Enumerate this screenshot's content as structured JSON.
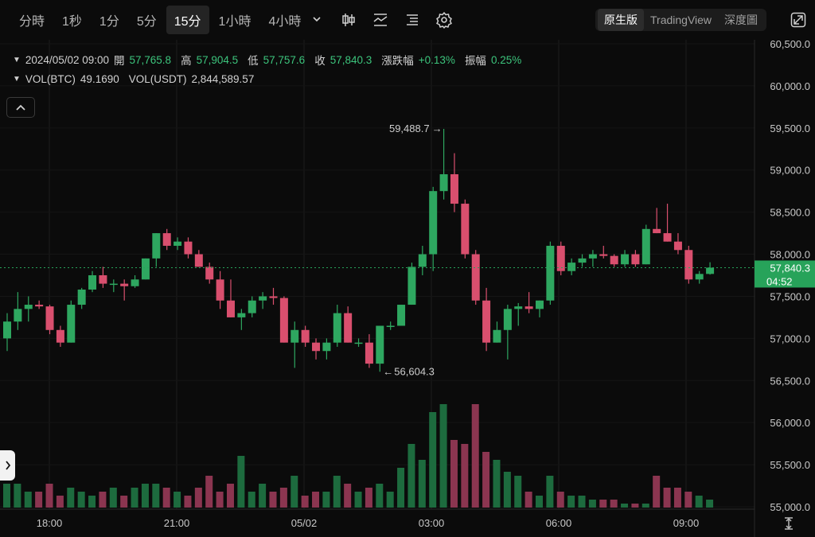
{
  "toolbar": {
    "intervals": [
      "分時",
      "1秒",
      "1分",
      "5分",
      "15分",
      "1小時",
      "4小時"
    ],
    "active_interval": "15分",
    "dropdown_icon": "chevron-down-icon",
    "tool_icons": [
      "candlestick-type-icon",
      "indicator-icon",
      "settings-list-icon",
      "gear-icon"
    ],
    "views": [
      "原生版",
      "TradingView",
      "深度圖"
    ],
    "active_view": "原生版",
    "expand_icon": "expand-icon"
  },
  "ohlc": {
    "datetime": "2024/05/02 09:00",
    "open_label": "開",
    "open": "57,765.8",
    "high_label": "高",
    "high": "57,904.5",
    "low_label": "低",
    "low": "57,757.6",
    "close_label": "收",
    "close": "57,840.3",
    "change_label": "漲跌幅",
    "change": "+0.13%",
    "amp_label": "振幅",
    "amp": "0.25%"
  },
  "volume": {
    "btc_label": "VOL(BTC)",
    "btc": "49.1690",
    "usdt_label": "VOL(USDT)",
    "usdt": "2,844,589.57"
  },
  "colors": {
    "up": "#2ea760",
    "down": "#d94f6e",
    "vol_up": "#1d6b3e",
    "vol_down": "#8b3550",
    "price_badge": "#27a35a"
  },
  "price_axis": [
    "60,500.0",
    "60,000.0",
    "59,500.0",
    "59,000.0",
    "58,500.0",
    "58,000.0",
    "57,500.0",
    "57,000.0",
    "56,500.0",
    "56,000.0",
    "55,500.0",
    "55,000.0"
  ],
  "time_axis": [
    "18:00",
    "21:00",
    "05/02",
    "03:00",
    "06:00",
    "09:00"
  ],
  "current_price": "57,840.3",
  "countdown": "04:52",
  "annotations": {
    "high": "59,488.7",
    "low": "56,604.3"
  },
  "chart_data": {
    "type": "candlestick",
    "y_axis_range": [
      55000,
      60500
    ],
    "candles": [
      {
        "o": 57000,
        "h": 57300,
        "l": 56850,
        "c": 57200
      },
      {
        "o": 57200,
        "h": 57550,
        "l": 57100,
        "c": 57350
      },
      {
        "o": 57350,
        "h": 57500,
        "l": 57200,
        "c": 57400
      },
      {
        "o": 57400,
        "h": 57450,
        "l": 57350,
        "c": 57380
      },
      {
        "o": 57380,
        "h": 57400,
        "l": 57050,
        "c": 57100
      },
      {
        "o": 57100,
        "h": 57150,
        "l": 56900,
        "c": 56950
      },
      {
        "o": 56950,
        "h": 57450,
        "l": 56950,
        "c": 57400
      },
      {
        "o": 57400,
        "h": 57600,
        "l": 57350,
        "c": 57580
      },
      {
        "o": 57580,
        "h": 57800,
        "l": 57550,
        "c": 57750
      },
      {
        "o": 57750,
        "h": 57850,
        "l": 57600,
        "c": 57650
      },
      {
        "o": 57650,
        "h": 57700,
        "l": 57550,
        "c": 57650
      },
      {
        "o": 57650,
        "h": 57700,
        "l": 57450,
        "c": 57620
      },
      {
        "o": 57620,
        "h": 57750,
        "l": 57600,
        "c": 57700
      },
      {
        "o": 57700,
        "h": 57950,
        "l": 57700,
        "c": 57950
      },
      {
        "o": 57950,
        "h": 58250,
        "l": 57850,
        "c": 58250
      },
      {
        "o": 58250,
        "h": 58300,
        "l": 58050,
        "c": 58100
      },
      {
        "o": 58100,
        "h": 58200,
        "l": 58050,
        "c": 58150
      },
      {
        "o": 58150,
        "h": 58200,
        "l": 57950,
        "c": 58000
      },
      {
        "o": 58000,
        "h": 58050,
        "l": 57850,
        "c": 57850
      },
      {
        "o": 57850,
        "h": 57900,
        "l": 57650,
        "c": 57700
      },
      {
        "o": 57700,
        "h": 57800,
        "l": 57350,
        "c": 57450
      },
      {
        "o": 57450,
        "h": 57700,
        "l": 57250,
        "c": 57250
      },
      {
        "o": 57250,
        "h": 57350,
        "l": 57100,
        "c": 57300
      },
      {
        "o": 57300,
        "h": 57500,
        "l": 57250,
        "c": 57450
      },
      {
        "o": 57450,
        "h": 57550,
        "l": 57350,
        "c": 57500
      },
      {
        "o": 57500,
        "h": 57600,
        "l": 57400,
        "c": 57480
      },
      {
        "o": 57480,
        "h": 57500,
        "l": 56950,
        "c": 56950
      },
      {
        "o": 56950,
        "h": 57200,
        "l": 56650,
        "c": 57100
      },
      {
        "o": 57100,
        "h": 57150,
        "l": 56900,
        "c": 56950
      },
      {
        "o": 56950,
        "h": 57000,
        "l": 56750,
        "c": 56850
      },
      {
        "o": 56850,
        "h": 57000,
        "l": 56750,
        "c": 56950
      },
      {
        "o": 56950,
        "h": 57400,
        "l": 56900,
        "c": 57300
      },
      {
        "o": 57300,
        "h": 57380,
        "l": 56950,
        "c": 56950
      },
      {
        "o": 56950,
        "h": 57000,
        "l": 56900,
        "c": 56950
      },
      {
        "o": 56950,
        "h": 57050,
        "l": 56650,
        "c": 56700
      },
      {
        "o": 56700,
        "h": 57150,
        "l": 56604,
        "c": 57150
      },
      {
        "o": 57150,
        "h": 57200,
        "l": 57100,
        "c": 57150
      },
      {
        "o": 57150,
        "h": 57400,
        "l": 57150,
        "c": 57400
      },
      {
        "o": 57400,
        "h": 57900,
        "l": 57400,
        "c": 57850
      },
      {
        "o": 57850,
        "h": 58100,
        "l": 57750,
        "c": 58000
      },
      {
        "o": 58000,
        "h": 58800,
        "l": 57800,
        "c": 58750
      },
      {
        "o": 58750,
        "h": 59488.7,
        "l": 58650,
        "c": 58950
      },
      {
        "o": 58950,
        "h": 59200,
        "l": 58500,
        "c": 58600
      },
      {
        "o": 58600,
        "h": 58650,
        "l": 57950,
        "c": 58000
      },
      {
        "o": 58000,
        "h": 58050,
        "l": 57400,
        "c": 57450
      },
      {
        "o": 57450,
        "h": 57600,
        "l": 56850,
        "c": 56950
      },
      {
        "o": 56950,
        "h": 57200,
        "l": 56950,
        "c": 57100
      },
      {
        "o": 57100,
        "h": 57400,
        "l": 56750,
        "c": 57350
      },
      {
        "o": 57350,
        "h": 57420,
        "l": 57150,
        "c": 57380
      },
      {
        "o": 57380,
        "h": 57550,
        "l": 57300,
        "c": 57350
      },
      {
        "o": 57350,
        "h": 57450,
        "l": 57250,
        "c": 57450
      },
      {
        "o": 57450,
        "h": 58150,
        "l": 57400,
        "c": 58100
      },
      {
        "o": 58100,
        "h": 58150,
        "l": 57750,
        "c": 57800
      },
      {
        "o": 57800,
        "h": 57950,
        "l": 57750,
        "c": 57900
      },
      {
        "o": 57900,
        "h": 58000,
        "l": 57850,
        "c": 57950
      },
      {
        "o": 57950,
        "h": 58050,
        "l": 57850,
        "c": 58000
      },
      {
        "o": 58000,
        "h": 58100,
        "l": 57950,
        "c": 57980
      },
      {
        "o": 57980,
        "h": 58000,
        "l": 57850,
        "c": 57880
      },
      {
        "o": 57880,
        "h": 58050,
        "l": 57850,
        "c": 58000
      },
      {
        "o": 58000,
        "h": 58050,
        "l": 57850,
        "c": 57880
      },
      {
        "o": 57880,
        "h": 58350,
        "l": 57880,
        "c": 58300
      },
      {
        "o": 58300,
        "h": 58550,
        "l": 58250,
        "c": 58250
      },
      {
        "o": 58250,
        "h": 58600,
        "l": 58150,
        "c": 58150
      },
      {
        "o": 58150,
        "h": 58250,
        "l": 58000,
        "c": 58050
      },
      {
        "o": 58050,
        "h": 58100,
        "l": 57650,
        "c": 57700
      },
      {
        "o": 57700,
        "h": 57800,
        "l": 57650,
        "c": 57765.8
      },
      {
        "o": 57765.8,
        "h": 57904.5,
        "l": 57757.6,
        "c": 57840.3
      }
    ],
    "volume": [
      30,
      30,
      20,
      20,
      30,
      15,
      25,
      20,
      15,
      20,
      25,
      15,
      25,
      30,
      30,
      25,
      20,
      15,
      25,
      40,
      20,
      30,
      65,
      20,
      30,
      20,
      25,
      40,
      15,
      20,
      20,
      40,
      30,
      20,
      25,
      30,
      20,
      50,
      80,
      60,
      120,
      130,
      85,
      80,
      130,
      70,
      60,
      45,
      40,
      20,
      15,
      40,
      20,
      15,
      15,
      10,
      10,
      10,
      5,
      5,
      5,
      40,
      25,
      25,
      20,
      15,
      10
    ]
  }
}
